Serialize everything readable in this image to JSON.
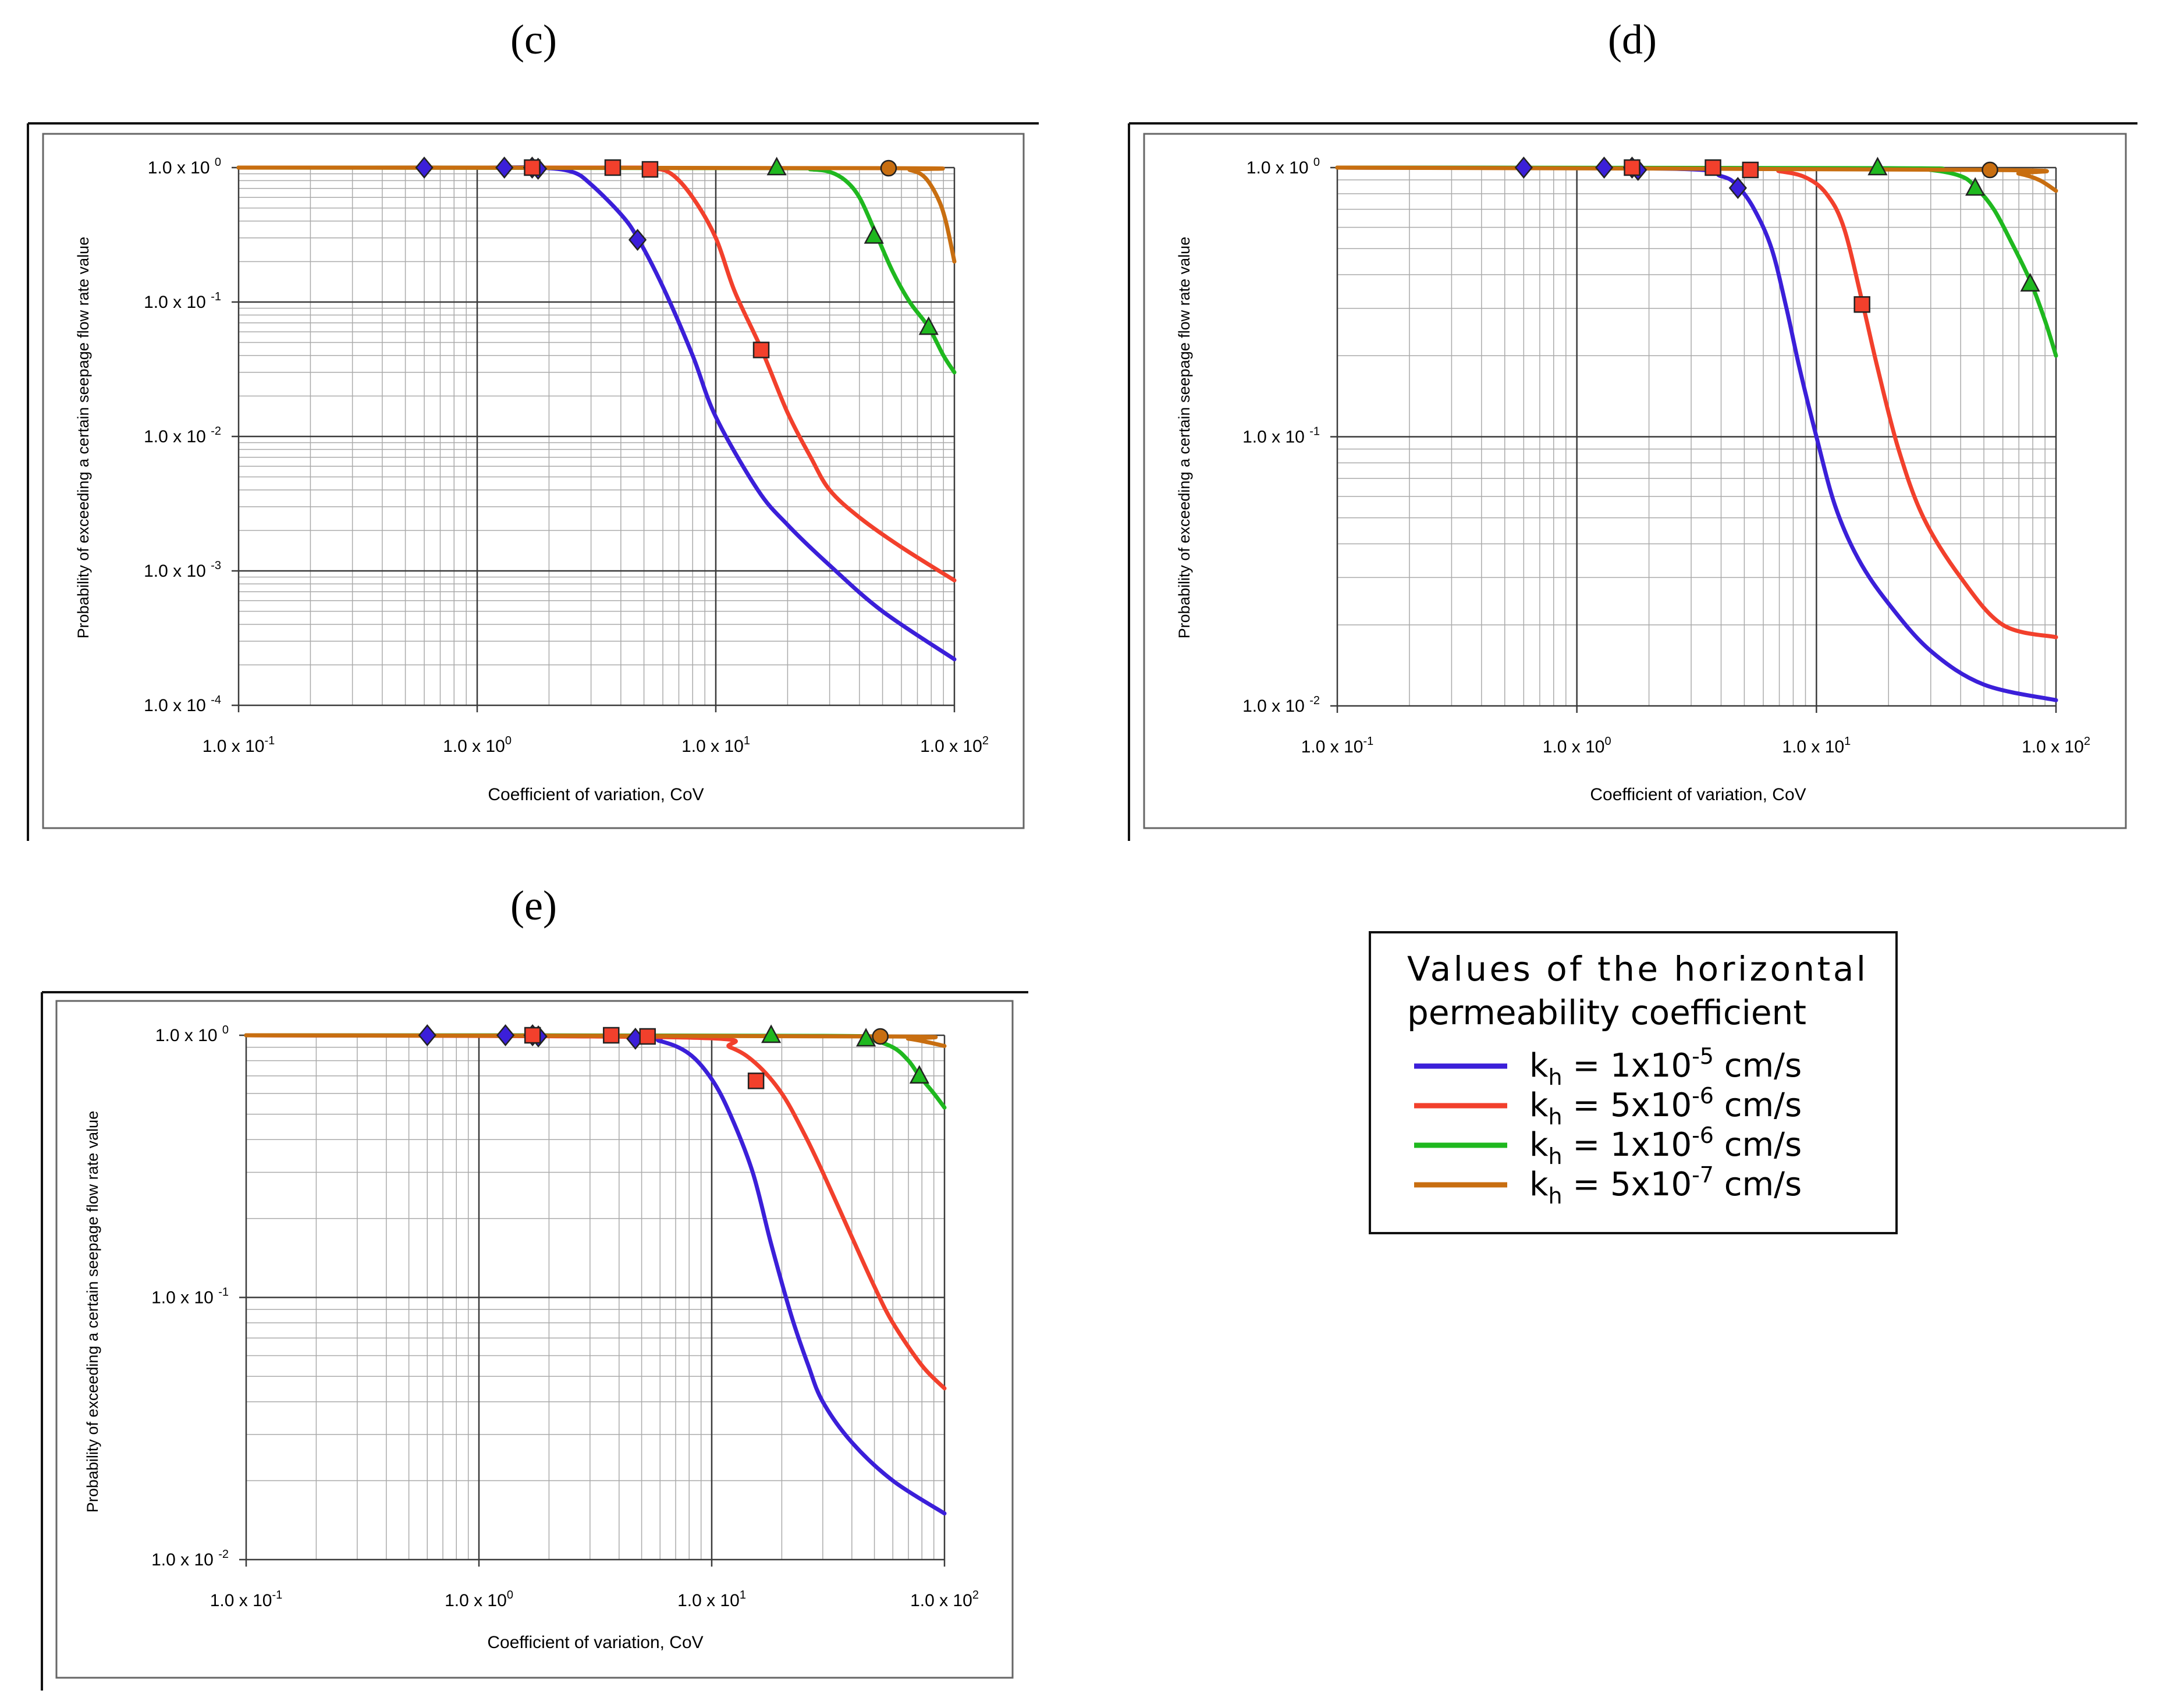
{
  "figure": {
    "background": "#ffffff"
  },
  "colors": {
    "series_1": "#3b1fd9",
    "series_2": "#f2402c",
    "series_3": "#1fb81f",
    "series_4": "#c86e10",
    "grid": "#aaaaaa",
    "grid_major": "#3a3a3a",
    "frame": "#555555"
  },
  "legend": {
    "title_line1": "Values of the horizontal",
    "title_line2": "permeability coefficient",
    "items": [
      {
        "k": "k",
        "sub": "h",
        "mid": " = 1x10",
        "exp": "-5",
        "unit": " cm/s",
        "color": "#3b1fd9"
      },
      {
        "k": "k",
        "sub": "h",
        "mid": " = 5x10",
        "exp": "-6",
        "unit": " cm/s",
        "color": "#f2402c"
      },
      {
        "k": "k",
        "sub": "h",
        "mid": " = 1x10",
        "exp": "-6",
        "unit": " cm/s",
        "color": "#1fb81f"
      },
      {
        "k": "k",
        "sub": "h",
        "mid": " = 5x10",
        "exp": "-7",
        "unit": " cm/s",
        "color": "#c86e10"
      }
    ]
  },
  "chart_data": [
    {
      "panel": "(c)",
      "type": "line",
      "xlabel": "Coefficient of variation, CoV",
      "ylabel": "Probability of exceeding a certain seepage flow rate value",
      "xscale": "log",
      "yscale": "log",
      "xlim": [
        0.1,
        100
      ],
      "ylim": [
        0.0001,
        1
      ],
      "x_ticks": [
        {
          "base": "1.0 x 10",
          "exp": "-1"
        },
        {
          "base": "1.0 x 10",
          "exp": "0"
        },
        {
          "base": "1.0 x 10",
          "exp": "1"
        },
        {
          "base": "1.0 x 10",
          "exp": "2"
        }
      ],
      "y_ticks": [
        {
          "base": "1.0 x 10",
          "exp": "-4"
        },
        {
          "base": "1.0 x 10",
          "exp": "-3"
        },
        {
          "base": "1.0 x 10",
          "exp": "-2"
        },
        {
          "base": "1.0 x 10",
          "exp": "-1"
        },
        {
          "base": "1.0 x 10",
          "exp": "0"
        }
      ],
      "series": [
        {
          "name": "kh = 1x10-5 cm/s",
          "marker": "diamond",
          "x": [
            0.1,
            1,
            1.8,
            2.5,
            3,
            4,
            4.7,
            6,
            8,
            10,
            15,
            20,
            30,
            50,
            100
          ],
          "y": [
            1,
            1,
            1,
            0.93,
            0.75,
            0.45,
            0.3,
            0.13,
            0.04,
            0.014,
            0.004,
            0.0022,
            0.0011,
            0.0005,
            0.00022
          ],
          "markers_x": [
            0.6,
            1.3,
            1.7,
            1.8,
            4.7
          ],
          "markers_y": [
            1,
            1,
            1,
            0.98,
            0.29
          ]
        },
        {
          "name": "kh = 5x10-6 cm/s",
          "marker": "square",
          "x": [
            0.1,
            3.7,
            5.3,
            6.5,
            8,
            10,
            12,
            15.5,
            20,
            25,
            30,
            40,
            60,
            100
          ],
          "y": [
            1,
            1,
            0.99,
            0.9,
            0.6,
            0.3,
            0.12,
            0.045,
            0.015,
            0.007,
            0.004,
            0.0025,
            0.0015,
            0.00085
          ],
          "markers_x": [
            1.7,
            3.7,
            5.3,
            15.5
          ],
          "markers_y": [
            1,
            1,
            0.97,
            0.044
          ]
        },
        {
          "name": "kh = 1x10-6 cm/s",
          "marker": "triangle",
          "x": [
            0.1,
            18,
            25,
            30,
            35,
            40,
            46,
            55,
            65,
            78,
            90,
            100
          ],
          "y": [
            1,
            0.99,
            0.97,
            0.93,
            0.8,
            0.6,
            0.35,
            0.17,
            0.1,
            0.065,
            0.04,
            0.03
          ],
          "markers_x": [
            18,
            46,
            78
          ],
          "markers_y": [
            1,
            0.31,
            0.065
          ]
        },
        {
          "name": "kh = 5x10-7 cm/s",
          "marker": "circle",
          "x": [
            0.1,
            53,
            65,
            75,
            85,
            92,
            100
          ],
          "y": [
            1,
            0.99,
            0.96,
            0.85,
            0.6,
            0.4,
            0.2
          ],
          "markers_x": [
            53
          ],
          "markers_y": [
            0.99
          ]
        }
      ]
    },
    {
      "panel": "(d)",
      "type": "line",
      "xlabel": "Coefficient of variation, CoV",
      "ylabel": "Probability of exceeding a certain seepage flow rate value",
      "xscale": "log",
      "yscale": "log",
      "xlim": [
        0.1,
        100
      ],
      "ylim": [
        0.01,
        1
      ],
      "x_ticks": [
        {
          "base": "1.0 x 10",
          "exp": "-1"
        },
        {
          "base": "1.0 x 10",
          "exp": "0"
        },
        {
          "base": "1.0 x 10",
          "exp": "1"
        },
        {
          "base": "1.0 x 10",
          "exp": "2"
        }
      ],
      "y_ticks": [
        {
          "base": "1.0 x 10",
          "exp": "-2"
        },
        {
          "base": "1.0 x 10",
          "exp": "-1"
        },
        {
          "base": "1.0 x 10",
          "exp": "0"
        }
      ],
      "series": [
        {
          "name": "kh = 1x10-5 cm/s",
          "marker": "diamond",
          "x": [
            0.1,
            2.5,
            4,
            4.7,
            5.5,
            6.5,
            7.5,
            8.5,
            10,
            12,
            15,
            20,
            30,
            50,
            100
          ],
          "y": [
            1,
            0.99,
            0.93,
            0.85,
            0.7,
            0.5,
            0.3,
            0.18,
            0.1,
            0.055,
            0.035,
            0.024,
            0.016,
            0.012,
            0.0105
          ],
          "markers_x": [
            0.6,
            1.3,
            1.7,
            1.8,
            4.7
          ],
          "markers_y": [
            1,
            1,
            1,
            0.98,
            0.84
          ]
        },
        {
          "name": "kh = 5x10-6 cm/s",
          "marker": "square",
          "x": [
            0.1,
            5.3,
            7,
            9,
            11,
            13,
            15.5,
            18,
            22,
            28,
            40,
            60,
            100
          ],
          "y": [
            1,
            0.99,
            0.97,
            0.92,
            0.8,
            0.6,
            0.32,
            0.18,
            0.09,
            0.05,
            0.03,
            0.02,
            0.018
          ],
          "markers_x": [
            1.7,
            3.7,
            5.3,
            15.5
          ],
          "markers_y": [
            1,
            1,
            0.98,
            0.31
          ]
        },
        {
          "name": "kh = 1x10-6 cm/s",
          "marker": "triangle",
          "x": [
            0.1,
            20,
            30,
            40,
            46,
            55,
            65,
            78,
            90,
            100
          ],
          "y": [
            1,
            0.995,
            0.98,
            0.93,
            0.85,
            0.7,
            0.53,
            0.38,
            0.27,
            0.2
          ],
          "markers_x": [
            18,
            46,
            78
          ],
          "markers_y": [
            1,
            0.84,
            0.37
          ]
        },
        {
          "name": "kh = 5x10-7 cm/s",
          "marker": "circle",
          "x": [
            0.1,
            53,
            70,
            85,
            100
          ],
          "y": [
            1,
            0.98,
            0.95,
            0.9,
            0.82
          ],
          "markers_x": [
            53
          ],
          "markers_y": [
            0.98
          ]
        }
      ]
    },
    {
      "panel": "(e)",
      "type": "line",
      "xlabel": "Coefficient of variation, CoV",
      "ylabel": "Probability of exceeding a certain seepage flow rate value",
      "xscale": "log",
      "yscale": "log",
      "xlim": [
        0.1,
        100
      ],
      "ylim": [
        0.01,
        1
      ],
      "x_ticks": [
        {
          "base": "1.0 x 10",
          "exp": "-1"
        },
        {
          "base": "1.0 x 10",
          "exp": "0"
        },
        {
          "base": "1.0 x 10",
          "exp": "1"
        },
        {
          "base": "1.0 x 10",
          "exp": "2"
        }
      ],
      "y_ticks": [
        {
          "base": "1.0 x 10",
          "exp": "-2"
        },
        {
          "base": "1.0 x 10",
          "exp": "-1"
        },
        {
          "base": "1.0 x 10",
          "exp": "0"
        }
      ],
      "series": [
        {
          "name": "kh = 1x10-5 cm/s",
          "marker": "diamond",
          "x": [
            0.1,
            4,
            6,
            8,
            10,
            12,
            15,
            18,
            22,
            26,
            30,
            40,
            60,
            100
          ],
          "y": [
            1,
            0.99,
            0.95,
            0.85,
            0.68,
            0.5,
            0.3,
            0.16,
            0.085,
            0.055,
            0.04,
            0.028,
            0.02,
            0.015
          ],
          "markers_x": [
            0.6,
            1.3,
            1.7,
            1.8,
            4.7
          ],
          "markers_y": [
            1,
            1,
            1,
            0.99,
            0.97
          ]
        },
        {
          "name": "kh = 5x10-6 cm/s",
          "marker": "square",
          "x": [
            0.1,
            8,
            12,
            15.5,
            20,
            25,
            30,
            40,
            50,
            60,
            80,
            100
          ],
          "y": [
            1,
            0.98,
            0.9,
            0.78,
            0.6,
            0.42,
            0.3,
            0.17,
            0.11,
            0.08,
            0.055,
            0.045
          ],
          "markers_x": [
            1.7,
            3.7,
            5.3,
            15.5
          ],
          "markers_y": [
            1,
            1,
            0.99,
            0.67
          ]
        },
        {
          "name": "kh = 1x10-6 cm/s",
          "marker": "triangle",
          "x": [
            0.1,
            30,
            46,
            60,
            70,
            78,
            90,
            100
          ],
          "y": [
            1,
            0.995,
            0.97,
            0.9,
            0.8,
            0.7,
            0.6,
            0.53
          ],
          "markers_x": [
            18,
            46,
            78
          ],
          "markers_y": [
            1,
            0.97,
            0.7
          ]
        },
        {
          "name": "kh = 5x10-7 cm/s",
          "marker": "circle",
          "x": [
            0.1,
            53,
            70,
            85,
            100
          ],
          "y": [
            1,
            0.99,
            0.97,
            0.94,
            0.91
          ],
          "markers_x": [
            53
          ],
          "markers_y": [
            0.99
          ]
        }
      ]
    }
  ]
}
